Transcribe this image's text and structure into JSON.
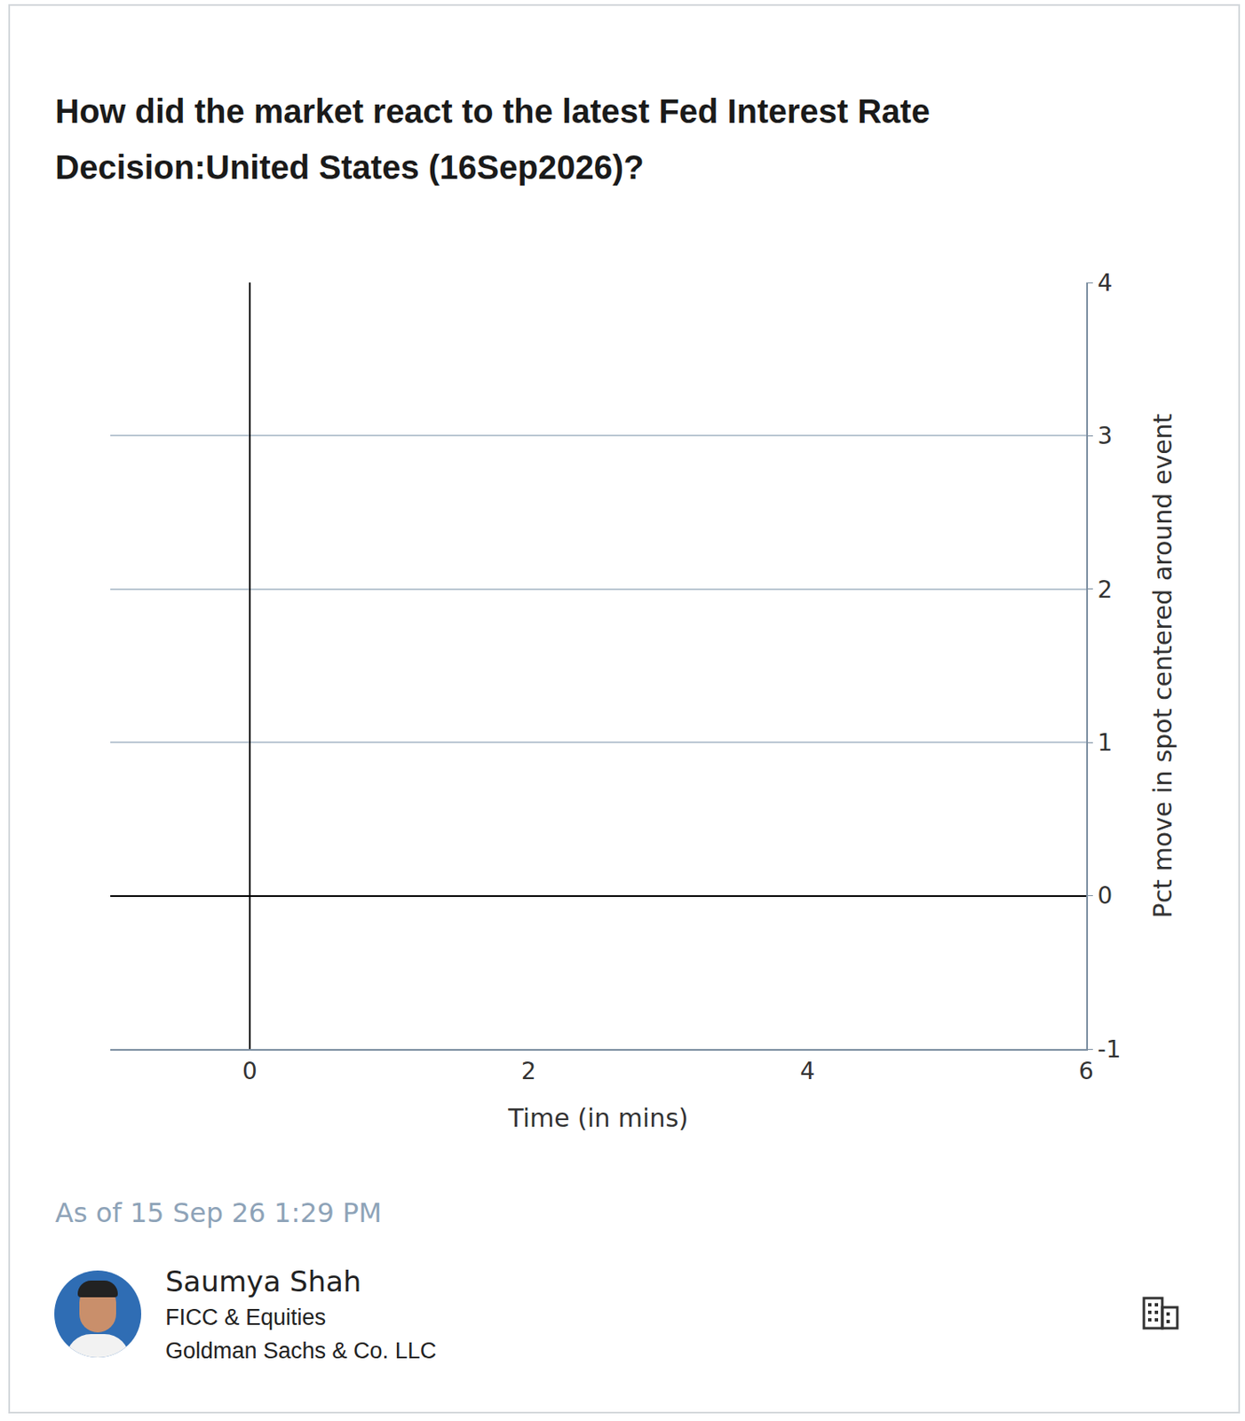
{
  "chart_data": {
    "type": "line",
    "title": "How did the market react to the latest Fed Interest Rate Decision:United States (16Sep2026)?",
    "x_label": "Time (in mins)",
    "y_label": "Pct move in spot centered around event",
    "series": [],
    "xlim": [
      -1,
      6
    ],
    "xticks": [
      0,
      2,
      4,
      6
    ],
    "ylim": [
      -1,
      4
    ],
    "yticks": [
      -1,
      0,
      1,
      2,
      3,
      4
    ],
    "grid": true
  },
  "footer": {
    "as_of": "As of 15 Sep 26 1:29 PM",
    "author": "Saumya Shah",
    "team": "FICC & Equities",
    "company": "Goldman Sachs & Co. LLC"
  }
}
